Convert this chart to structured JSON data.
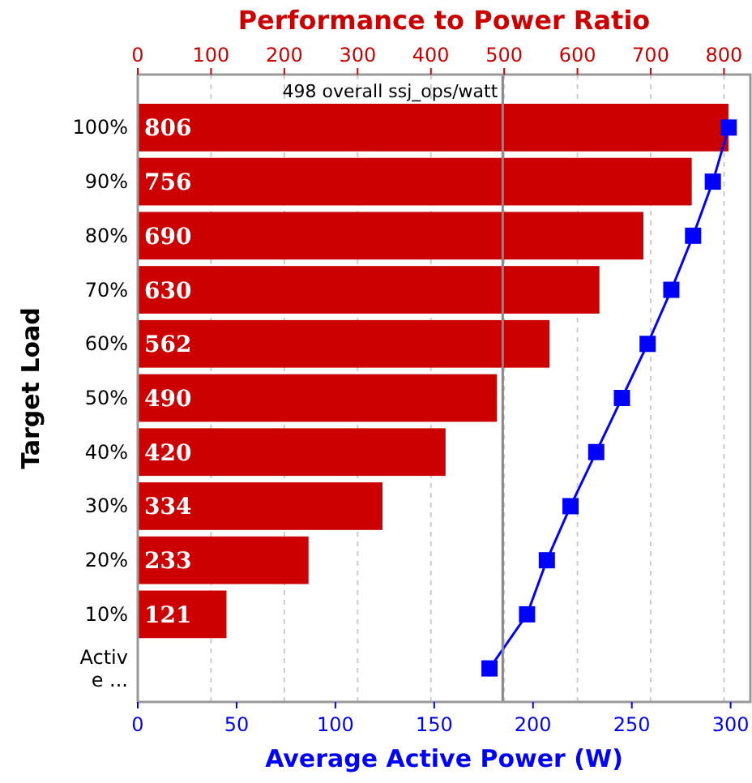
{
  "chart_data": {
    "type": "bar",
    "orientation": "horizontal",
    "title": "Performance to Power Ratio",
    "xlabel": "Average Active Power (W)",
    "ylabel": "Target Load",
    "categories": [
      "100%",
      "90%",
      "80%",
      "70%",
      "60%",
      "50%",
      "40%",
      "30%",
      "20%",
      "10%",
      "Active ..."
    ],
    "series": [
      {
        "axis": "x2",
        "color": "#cc0000",
        "values": [
          806,
          756,
          690,
          630,
          562,
          490,
          420,
          334,
          233,
          121,
          null
        ],
        "value_labels": [
          "806",
          "756",
          "690",
          "630",
          "562",
          "490",
          "420",
          "334",
          "233",
          "121",
          null
        ]
      },
      {
        "type": "line",
        "color": "#0000ff",
        "marker": "square",
        "values": [
          299,
          291,
          281,
          270,
          258,
          245,
          232,
          219,
          207,
          197,
          178
        ]
      }
    ],
    "xlim": [
      0,
      310
    ],
    "xticks": [
      0,
      50,
      100,
      150,
      200,
      250,
      300
    ],
    "x2lim": [
      0,
      836
    ],
    "x2ticks": [
      0,
      100,
      200,
      300,
      400,
      500,
      600,
      700,
      800
    ],
    "ref_lines": [
      {
        "axis": "x2",
        "value": 498,
        "label": "498 overall ssj_ops/watt",
        "color": "#888888"
      }
    ],
    "grid": "x"
  }
}
